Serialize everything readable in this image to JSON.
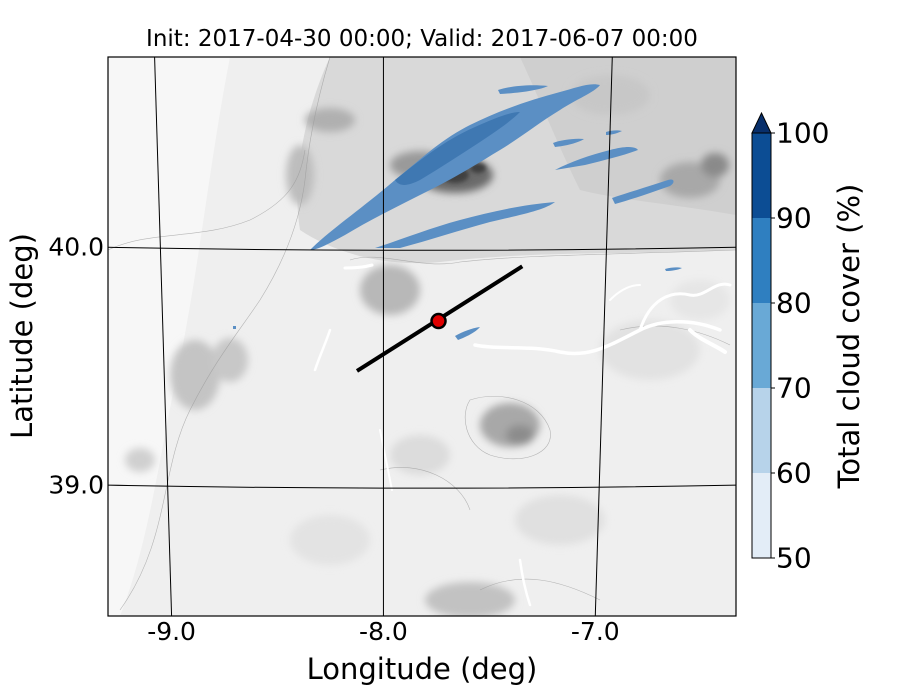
{
  "title": "Init: 2017-04-30 00:00; Valid: 2017-06-07 00:00",
  "x_axis": {
    "label": "Longitude (deg)",
    "ticks": [
      {
        "value": -9.0,
        "label": "-9.0"
      },
      {
        "value": -8.0,
        "label": "-8.0"
      },
      {
        "value": -7.0,
        "label": "-7.0"
      }
    ],
    "range": [
      -9.25,
      -6.4
    ]
  },
  "y_axis": {
    "label": "Latitude (deg)",
    "ticks": [
      {
        "value": 40.0,
        "label": "40.0"
      },
      {
        "value": 39.0,
        "label": "39.0"
      }
    ],
    "range": [
      38.45,
      40.8
    ]
  },
  "colorbar": {
    "label": "Total cloud cover (%)",
    "levels": [
      50,
      60,
      70,
      80,
      90,
      100
    ],
    "tick_labels": [
      "50",
      "60",
      "70",
      "80",
      "90",
      "100"
    ],
    "colors": [
      "#e3edf7",
      "#b7d3ea",
      "#69a9d6",
      "#2f7fc0",
      "#0c4d94",
      "#082f6b"
    ],
    "extend": "max"
  },
  "map": {
    "background": "grayscale terrain elevation contours",
    "graticule": {
      "lon": [
        -9.0,
        -8.0,
        -7.0
      ],
      "lat": [
        40.0,
        39.0
      ]
    }
  },
  "transect": {
    "start": {
      "lon": -8.12,
      "lat": 39.48
    },
    "end": {
      "lon": -7.37,
      "lat": 39.92
    }
  },
  "marker": {
    "lon": -7.75,
    "lat": 39.69,
    "color": "#e00000"
  }
}
